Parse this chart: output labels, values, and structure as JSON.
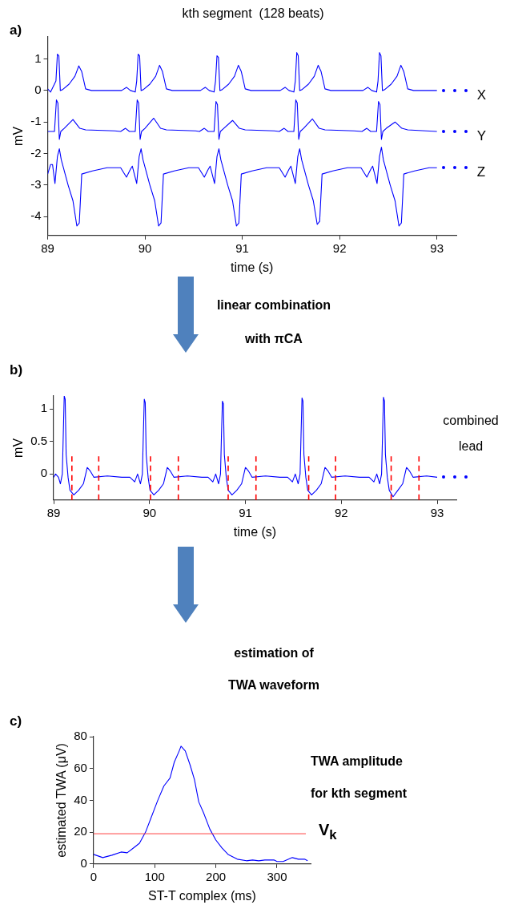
{
  "chart_data": [
    {
      "type": "line",
      "title": "kth segment  (128 beats)",
      "legend": "right",
      "annotations": [
        "a)"
      ],
      "xlabel": "time (s)",
      "ylabel": "mV",
      "xlim": [
        89,
        93.2
      ],
      "xticks": [
        89,
        90,
        91,
        92,
        93
      ],
      "ylim": [
        -4.6,
        1.7
      ],
      "yticks": [
        -4,
        -3,
        -2,
        -1,
        0,
        1
      ],
      "series": [
        {
          "name": "X",
          "color": "#0000ff",
          "x": [
            89.0,
            89.03,
            89.085,
            89.1,
            89.115,
            89.13,
            89.15,
            89.22,
            89.28,
            89.32,
            89.35,
            89.39,
            89.45,
            89.7,
            89.76,
            89.81,
            89.85,
            89.9,
            89.915,
            89.93,
            89.945,
            89.96,
            89.98,
            90.05,
            90.11,
            90.15,
            90.18,
            90.22,
            90.28,
            90.53,
            90.57,
            90.62,
            90.66,
            90.71,
            90.725,
            90.74,
            90.755,
            90.77,
            90.79,
            90.86,
            90.92,
            90.96,
            90.99,
            91.03,
            91.09,
            91.34,
            91.39,
            91.44,
            91.48,
            91.53,
            91.545,
            91.56,
            91.575,
            91.59,
            91.61,
            91.68,
            91.74,
            91.78,
            91.81,
            91.85,
            91.91,
            92.16,
            92.24,
            92.29,
            92.33,
            92.38,
            92.395,
            92.41,
            92.425,
            92.44,
            92.46,
            92.53,
            92.59,
            92.63,
            92.66,
            92.7,
            92.76,
            93.0
          ],
          "values": [
            0.05,
            -0.05,
            0.3,
            1.15,
            1.1,
            0,
            0.02,
            0.2,
            0.45,
            0.78,
            0.6,
            0.05,
            0,
            0,
            0,
            0.1,
            0,
            -0.05,
            0.3,
            1.15,
            1.1,
            0,
            0.02,
            0.2,
            0.45,
            0.8,
            0.6,
            0.05,
            0,
            0,
            0,
            0.1,
            0,
            -0.05,
            0.3,
            1.1,
            1.05,
            0,
            0.02,
            0.2,
            0.45,
            0.8,
            0.6,
            0.05,
            0,
            0,
            0,
            0.1,
            0,
            -0.05,
            0.3,
            1.2,
            1.1,
            0,
            0.02,
            0.2,
            0.45,
            0.8,
            0.6,
            0.05,
            0,
            0,
            0,
            0.1,
            0,
            -0.05,
            0.3,
            1.2,
            1.1,
            0,
            0.02,
            0.2,
            0.45,
            0.8,
            0.6,
            0.05,
            0,
            0
          ]
        },
        {
          "name": "Y",
          "color": "#0000ff",
          "x": [
            89.0,
            89.07,
            89.09,
            89.105,
            89.12,
            89.135,
            89.17,
            89.26,
            89.33,
            89.39,
            89.69,
            89.75,
            89.8,
            89.84,
            89.9,
            89.92,
            89.935,
            89.95,
            89.965,
            90.0,
            90.09,
            90.16,
            90.22,
            90.52,
            90.56,
            90.61,
            90.65,
            90.71,
            90.73,
            90.745,
            90.76,
            90.775,
            90.81,
            90.9,
            90.97,
            91.03,
            91.33,
            91.38,
            91.43,
            91.47,
            91.53,
            91.55,
            91.565,
            91.58,
            91.595,
            91.63,
            91.72,
            91.79,
            91.85,
            92.15,
            92.23,
            92.28,
            92.32,
            92.38,
            92.4,
            92.415,
            92.43,
            92.445,
            92.48,
            92.57,
            92.64,
            92.7,
            93.0
          ],
          "values": [
            -1.3,
            -1.3,
            -0.3,
            -0.4,
            -1.55,
            -1.3,
            -1.2,
            -0.92,
            -1.2,
            -1.25,
            -1.28,
            -1.3,
            -1.2,
            -1.3,
            -1.3,
            -0.3,
            -0.4,
            -1.55,
            -1.3,
            -1.2,
            -0.88,
            -1.2,
            -1.25,
            -1.28,
            -1.3,
            -1.2,
            -1.3,
            -1.3,
            -0.35,
            -0.45,
            -1.55,
            -1.3,
            -1.2,
            -0.95,
            -1.2,
            -1.25,
            -1.28,
            -1.3,
            -1.2,
            -1.3,
            -1.3,
            -0.3,
            -0.4,
            -1.55,
            -1.3,
            -1.2,
            -0.9,
            -1.2,
            -1.25,
            -1.28,
            -1.3,
            -1.2,
            -1.3,
            -1.3,
            -0.35,
            -0.45,
            -1.55,
            -1.3,
            -1.2,
            -1.0,
            -1.2,
            -1.25,
            -1.3
          ]
        },
        {
          "name": "Z",
          "color": "#0000ff",
          "x": [
            89.0,
            89.03,
            89.05,
            89.075,
            89.1,
            89.12,
            89.14,
            89.21,
            89.26,
            89.3,
            89.325,
            89.35,
            89.46,
            89.61,
            89.75,
            89.81,
            89.85,
            89.87,
            89.915,
            89.94,
            89.96,
            89.98,
            90.05,
            90.1,
            90.14,
            90.165,
            90.19,
            90.3,
            90.45,
            90.55,
            90.61,
            90.65,
            90.67,
            90.715,
            90.74,
            90.76,
            90.78,
            90.85,
            90.9,
            90.94,
            90.965,
            90.99,
            91.1,
            91.25,
            91.38,
            91.44,
            91.48,
            91.5,
            91.545,
            91.57,
            91.59,
            91.61,
            91.68,
            91.73,
            91.77,
            91.795,
            91.82,
            91.93,
            92.08,
            92.22,
            92.28,
            92.32,
            92.34,
            92.385,
            92.41,
            92.43,
            92.45,
            92.52,
            92.57,
            92.61,
            92.635,
            92.66,
            92.77,
            92.92,
            93.0
          ],
          "values": [
            -2.65,
            -2.35,
            -2.35,
            -2.95,
            -2.1,
            -1.85,
            -2.2,
            -3.0,
            -3.5,
            -4.3,
            -4.2,
            -2.65,
            -2.55,
            -2.45,
            -2.45,
            -2.75,
            -2.5,
            -2.4,
            -2.95,
            -2.1,
            -1.85,
            -2.2,
            -3.0,
            -3.5,
            -4.3,
            -4.2,
            -2.65,
            -2.55,
            -2.45,
            -2.45,
            -2.75,
            -2.5,
            -2.4,
            -2.95,
            -2.1,
            -1.85,
            -2.2,
            -3.0,
            -3.5,
            -4.3,
            -4.2,
            -2.65,
            -2.55,
            -2.45,
            -2.45,
            -2.75,
            -2.5,
            -2.4,
            -2.95,
            -2.1,
            -1.85,
            -2.2,
            -3.0,
            -3.5,
            -4.25,
            -4.15,
            -2.65,
            -2.55,
            -2.45,
            -2.45,
            -2.75,
            -2.5,
            -2.4,
            -2.95,
            -2.1,
            -1.8,
            -2.2,
            -3.0,
            -3.5,
            -4.3,
            -4.2,
            -2.65,
            -2.55,
            -2.45,
            -2.45
          ]
        }
      ]
    },
    {
      "type": "line",
      "legend": "right",
      "annotations": [
        "b)",
        "linear combination with πCA"
      ],
      "xlabel": "time (s)",
      "ylabel": "mV",
      "xlim": [
        89,
        93.2
      ],
      "xticks": [
        89,
        90,
        91,
        92,
        93
      ],
      "ylim": [
        -0.4,
        1.2
      ],
      "yticks": [
        0,
        0.5,
        1
      ],
      "series": [
        {
          "name": "combined lead",
          "color": "#0000ff",
          "x": [
            89.0,
            89.02,
            89.05,
            89.07,
            89.09,
            89.1,
            89.11,
            89.12,
            89.13,
            89.15,
            89.17,
            89.21,
            89.26,
            89.31,
            89.35,
            89.38,
            89.42,
            89.56,
            89.71,
            89.795,
            89.845,
            89.875,
            89.905,
            89.925,
            89.935,
            89.945,
            89.955,
            89.965,
            89.985,
            90.005,
            90.045,
            90.095,
            90.145,
            90.185,
            90.215,
            90.255,
            90.395,
            90.545,
            90.61,
            90.66,
            90.69,
            90.72,
            90.74,
            90.75,
            90.76,
            90.77,
            90.78,
            90.8,
            90.82,
            90.86,
            90.91,
            90.96,
            91.0,
            91.03,
            91.07,
            91.21,
            91.36,
            91.44,
            91.49,
            91.52,
            91.55,
            91.57,
            91.58,
            91.59,
            91.6,
            91.61,
            91.63,
            91.65,
            91.69,
            91.74,
            91.79,
            91.83,
            91.86,
            91.9,
            92.04,
            92.19,
            92.29,
            92.34,
            92.37,
            92.4,
            92.42,
            92.43,
            92.44,
            92.45,
            92.46,
            92.48,
            92.5,
            92.54,
            92.59,
            92.64,
            92.68,
            92.71,
            92.75,
            92.89,
            93.0
          ],
          "values": [
            -0.05,
            0.0,
            -0.05,
            -0.15,
            0.0,
            0.6,
            1.2,
            1.15,
            0.3,
            -0.05,
            -0.25,
            -0.32,
            -0.25,
            -0.15,
            0.1,
            0.05,
            -0.05,
            -0.03,
            -0.05,
            -0.05,
            -0.12,
            0.0,
            -0.15,
            0.0,
            0.6,
            1.15,
            1.1,
            0.3,
            -0.05,
            -0.25,
            -0.32,
            -0.25,
            -0.15,
            0.1,
            0.05,
            -0.05,
            -0.03,
            -0.05,
            -0.05,
            -0.12,
            0.0,
            -0.15,
            0.0,
            0.6,
            1.12,
            1.08,
            0.3,
            -0.05,
            -0.25,
            -0.32,
            -0.25,
            -0.15,
            0.1,
            0.05,
            -0.05,
            -0.03,
            -0.05,
            -0.05,
            -0.12,
            0.0,
            -0.15,
            0.0,
            0.6,
            1.17,
            1.12,
            0.3,
            -0.05,
            -0.25,
            -0.32,
            -0.25,
            -0.15,
            0.1,
            0.05,
            -0.05,
            -0.03,
            -0.05,
            -0.05,
            -0.12,
            0.0,
            -0.15,
            0.0,
            0.6,
            1.18,
            1.12,
            0.3,
            -0.05,
            -0.25,
            -0.35,
            -0.25,
            -0.15,
            0.1,
            0.05,
            -0.05,
            -0.03,
            -0.05
          ]
        }
      ],
      "ref_lines": [
        {
          "axis": "x",
          "value": 89.19,
          "color": "#ff0000",
          "line_style": "dashed"
        },
        {
          "axis": "x",
          "value": 89.47,
          "color": "#ff0000",
          "line_style": "dashed"
        },
        {
          "axis": "x",
          "value": 90.01,
          "color": "#ff0000",
          "line_style": "dashed"
        },
        {
          "axis": "x",
          "value": 90.3,
          "color": "#ff0000",
          "line_style": "dashed"
        },
        {
          "axis": "x",
          "value": 90.82,
          "color": "#ff0000",
          "line_style": "dashed"
        },
        {
          "axis": "x",
          "value": 91.11,
          "color": "#ff0000",
          "line_style": "dashed"
        },
        {
          "axis": "x",
          "value": 91.66,
          "color": "#ff0000",
          "line_style": "dashed"
        },
        {
          "axis": "x",
          "value": 91.94,
          "color": "#ff0000",
          "line_style": "dashed"
        },
        {
          "axis": "x",
          "value": 92.52,
          "color": "#ff0000",
          "line_style": "dashed"
        },
        {
          "axis": "x",
          "value": 92.81,
          "color": "#ff0000",
          "line_style": "dashed"
        }
      ]
    },
    {
      "type": "line",
      "annotations": [
        "c)",
        "estimation of TWA waveform",
        "TWA amplitude for kth segment"
      ],
      "xlabel": "ST-T complex (ms)",
      "ylabel": "estimated TWA (μV)",
      "xlim": [
        0,
        355
      ],
      "xticks": [
        0,
        100,
        200,
        300
      ],
      "ylim": [
        0,
        80
      ],
      "yticks": [
        0,
        20,
        40,
        60,
        80
      ],
      "series": [
        {
          "color": "#0000ff",
          "x": [
            0,
            15,
            30,
            45,
            55,
            65,
            75,
            85,
            95,
            105,
            115,
            125,
            132,
            140,
            143,
            150,
            158,
            165,
            172,
            180,
            190,
            200,
            210,
            220,
            235,
            250,
            260,
            270,
            280,
            295,
            300,
            310,
            325,
            335,
            345,
            350
          ],
          "values": [
            6,
            4,
            5.5,
            7.5,
            7,
            10,
            13,
            20,
            30,
            40,
            49,
            54,
            64,
            71,
            74,
            71,
            62,
            53,
            39,
            32,
            22,
            15,
            10,
            6,
            3,
            2,
            2.5,
            2,
            2.5,
            2.5,
            1.5,
            1.5,
            4,
            3,
            3,
            2
          ]
        }
      ],
      "ref_lines": [
        {
          "axis": "y",
          "value": 19,
          "label": "V$_{k}$",
          "color": "#ff4040"
        }
      ]
    }
  ]
}
